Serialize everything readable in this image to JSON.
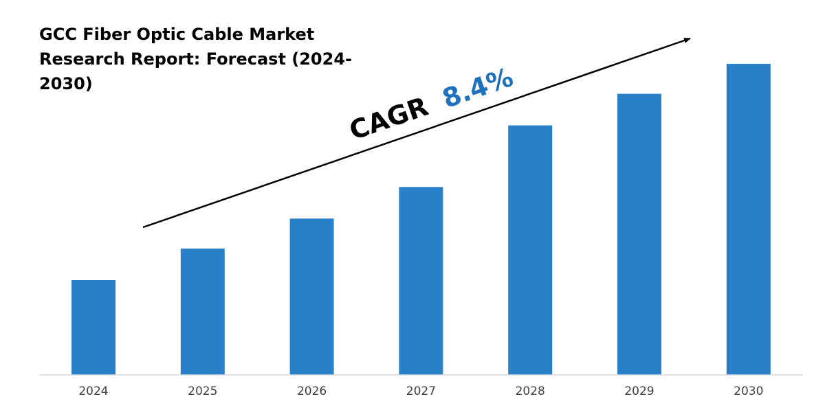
{
  "chart_data": {
    "type": "bar",
    "title_lines": [
      "GCC Fiber Optic Cable Market",
      "Research Report: Forecast (2024-",
      "2030)"
    ],
    "categories": [
      "2024",
      "2025",
      "2026",
      "2027",
      "2028",
      "2029",
      "2030"
    ],
    "values": [
      30,
      40,
      49.5,
      59.5,
      79,
      89,
      98.5
    ],
    "ylim": [
      0,
      100
    ],
    "xlabel": "",
    "ylabel": "",
    "grid": false,
    "legend": "none",
    "bar_color": "#2980C9",
    "annotation": {
      "label": "CAGR",
      "value": "8.4%",
      "label_color": "#000000",
      "value_color": "#1F73BE"
    }
  }
}
